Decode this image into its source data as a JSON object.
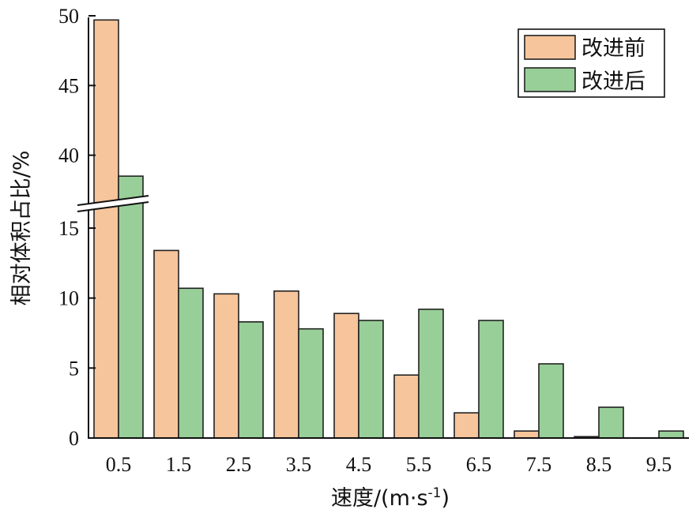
{
  "chart_data": {
    "type": "bar",
    "categories": [
      "0.5",
      "1.5",
      "2.5",
      "3.5",
      "4.5",
      "5.5",
      "6.5",
      "7.5",
      "8.5",
      "9.5"
    ],
    "series": [
      {
        "name": "改进前",
        "values": [
          49.7,
          13.4,
          10.3,
          10.5,
          8.9,
          4.5,
          1.8,
          0.5,
          0.1,
          0.0
        ],
        "color": "#f7c59b"
      },
      {
        "name": "改进后",
        "values": [
          38.5,
          10.7,
          8.3,
          7.8,
          8.4,
          9.2,
          8.4,
          5.3,
          2.2,
          0.5
        ],
        "color": "#98cf98"
      }
    ],
    "xlabel": "速度/(m·s",
    "xlabel_superscript": "-1",
    "xlabel_suffix": ")",
    "ylabel": "相对体积占比/%",
    "y_axis": {
      "broken": true,
      "lower_range": [
        0,
        15
      ],
      "upper_range": [
        35,
        50
      ],
      "lower_ticks": [
        "0",
        "5",
        "10",
        "15"
      ],
      "upper_ticks": [
        "40",
        "45",
        "50"
      ]
    },
    "legend_position": "top-right",
    "grid": false
  }
}
